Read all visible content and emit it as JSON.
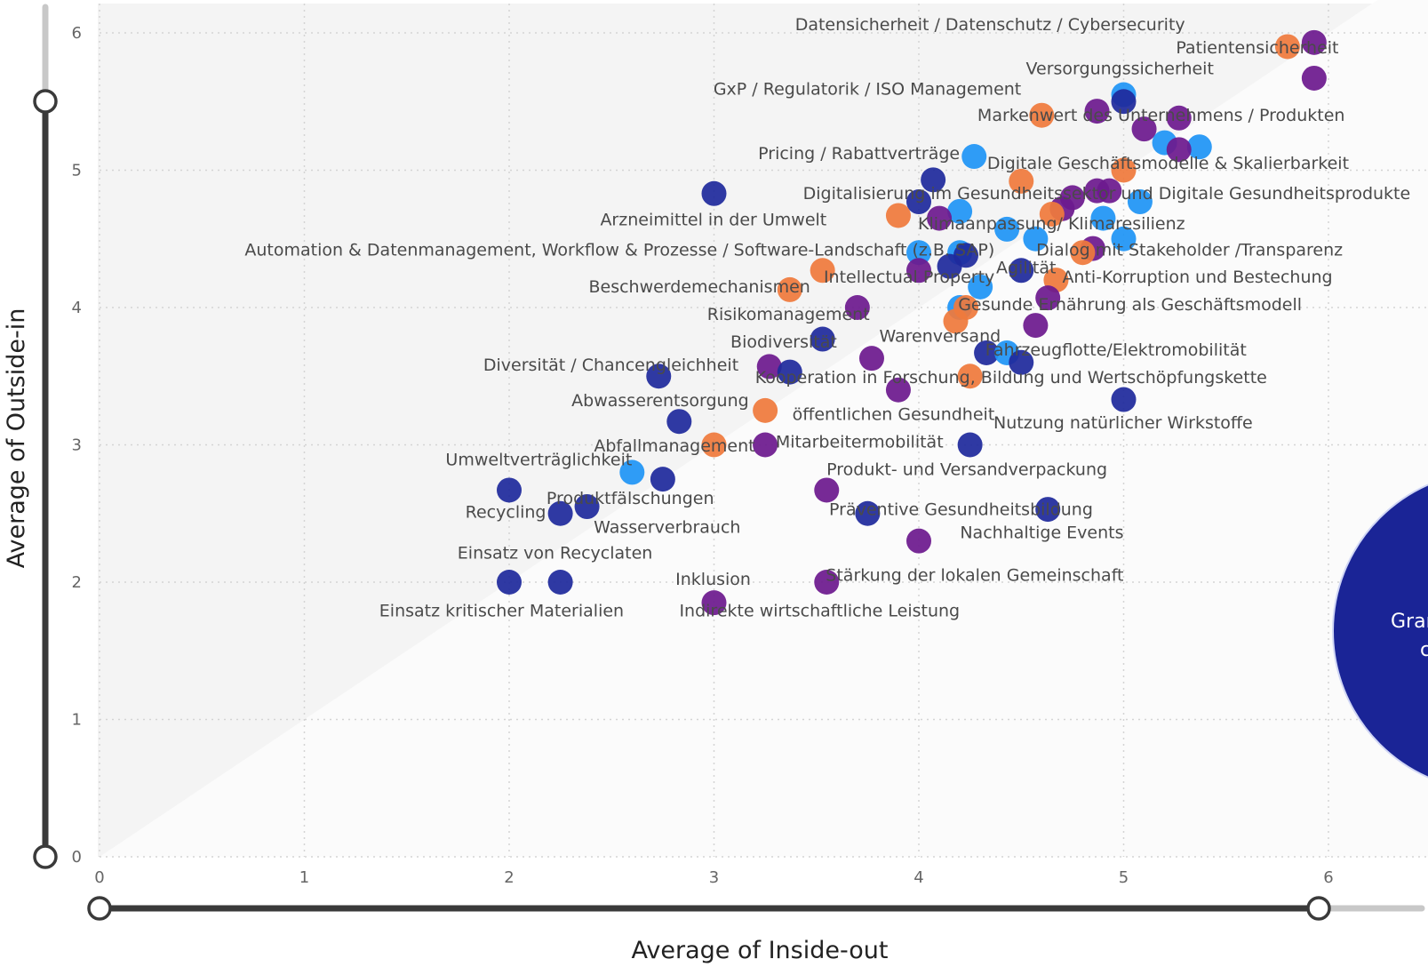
{
  "chart_data": {
    "type": "scatter",
    "xlabel": "Average of Inside-out",
    "ylabel": "Average of Outside-in",
    "xlim": [
      0,
      6.5
    ],
    "ylim": [
      0,
      6.2
    ],
    "x_ticks": [
      "0",
      "1",
      "2",
      "3",
      "4",
      "5",
      "6"
    ],
    "y_ticks": [
      "0",
      "1",
      "2",
      "3",
      "4",
      "5",
      "6"
    ],
    "grid": true,
    "colors": {
      "lightblue": "#1f95f5",
      "navy": "#1f2a9c",
      "purple": "#6d1a8e",
      "orange": "#ef7a3c",
      "big": "#1a2496"
    },
    "points": [
      {
        "x": 5.93,
        "y": 5.93,
        "c": "purple"
      },
      {
        "x": 5.8,
        "y": 5.9,
        "c": "orange"
      },
      {
        "x": 5.93,
        "y": 5.67,
        "c": "purple"
      },
      {
        "x": 5.0,
        "y": 5.55,
        "c": "lightblue"
      },
      {
        "x": 5.0,
        "y": 5.5,
        "c": "navy"
      },
      {
        "x": 4.87,
        "y": 5.43,
        "c": "purple"
      },
      {
        "x": 4.6,
        "y": 5.4,
        "c": "orange"
      },
      {
        "x": 5.27,
        "y": 5.38,
        "c": "purple"
      },
      {
        "x": 5.1,
        "y": 5.3,
        "c": "purple"
      },
      {
        "x": 5.2,
        "y": 5.2,
        "c": "lightblue"
      },
      {
        "x": 5.37,
        "y": 5.17,
        "c": "lightblue"
      },
      {
        "x": 5.27,
        "y": 5.15,
        "c": "purple"
      },
      {
        "x": 4.27,
        "y": 5.1,
        "c": "lightblue"
      },
      {
        "x": 5.0,
        "y": 5.0,
        "c": "orange"
      },
      {
        "x": 4.07,
        "y": 4.93,
        "c": "navy"
      },
      {
        "x": 4.5,
        "y": 4.92,
        "c": "orange"
      },
      {
        "x": 3.0,
        "y": 4.83,
        "c": "navy"
      },
      {
        "x": 4.93,
        "y": 4.85,
        "c": "purple"
      },
      {
        "x": 4.87,
        "y": 4.85,
        "c": "purple"
      },
      {
        "x": 4.75,
        "y": 4.8,
        "c": "purple"
      },
      {
        "x": 4.0,
        "y": 4.77,
        "c": "navy"
      },
      {
        "x": 5.08,
        "y": 4.77,
        "c": "lightblue"
      },
      {
        "x": 4.7,
        "y": 4.72,
        "c": "purple"
      },
      {
        "x": 4.2,
        "y": 4.7,
        "c": "lightblue"
      },
      {
        "x": 4.65,
        "y": 4.68,
        "c": "orange"
      },
      {
        "x": 3.9,
        "y": 4.67,
        "c": "orange"
      },
      {
        "x": 4.1,
        "y": 4.65,
        "c": "purple"
      },
      {
        "x": 4.9,
        "y": 4.65,
        "c": "lightblue"
      },
      {
        "x": 4.43,
        "y": 4.57,
        "c": "lightblue"
      },
      {
        "x": 4.57,
        "y": 4.5,
        "c": "lightblue"
      },
      {
        "x": 5.0,
        "y": 4.5,
        "c": "lightblue"
      },
      {
        "x": 4.85,
        "y": 4.43,
        "c": "purple"
      },
      {
        "x": 4.8,
        "y": 4.4,
        "c": "orange"
      },
      {
        "x": 4.0,
        "y": 4.4,
        "c": "lightblue"
      },
      {
        "x": 4.2,
        "y": 4.4,
        "c": "lightblue"
      },
      {
        "x": 4.23,
        "y": 4.38,
        "c": "navy"
      },
      {
        "x": 4.15,
        "y": 4.3,
        "c": "navy"
      },
      {
        "x": 4.0,
        "y": 4.27,
        "c": "purple"
      },
      {
        "x": 3.53,
        "y": 4.27,
        "c": "orange"
      },
      {
        "x": 4.5,
        "y": 4.27,
        "c": "navy"
      },
      {
        "x": 4.67,
        "y": 4.2,
        "c": "orange"
      },
      {
        "x": 4.3,
        "y": 4.15,
        "c": "lightblue"
      },
      {
        "x": 3.37,
        "y": 4.13,
        "c": "orange"
      },
      {
        "x": 4.63,
        "y": 4.07,
        "c": "purple"
      },
      {
        "x": 3.7,
        "y": 4.0,
        "c": "purple"
      },
      {
        "x": 4.2,
        "y": 4.0,
        "c": "lightblue"
      },
      {
        "x": 4.23,
        "y": 4.0,
        "c": "orange"
      },
      {
        "x": 4.18,
        "y": 3.9,
        "c": "orange"
      },
      {
        "x": 4.57,
        "y": 3.87,
        "c": "purple"
      },
      {
        "x": 3.53,
        "y": 3.77,
        "c": "navy"
      },
      {
        "x": 4.33,
        "y": 3.67,
        "c": "navy"
      },
      {
        "x": 4.43,
        "y": 3.67,
        "c": "lightblue"
      },
      {
        "x": 3.77,
        "y": 3.63,
        "c": "purple"
      },
      {
        "x": 4.5,
        "y": 3.6,
        "c": "navy"
      },
      {
        "x": 3.27,
        "y": 3.57,
        "c": "purple"
      },
      {
        "x": 3.37,
        "y": 3.53,
        "c": "navy"
      },
      {
        "x": 2.73,
        "y": 3.5,
        "c": "navy"
      },
      {
        "x": 4.25,
        "y": 3.5,
        "c": "orange"
      },
      {
        "x": 3.9,
        "y": 3.4,
        "c": "purple"
      },
      {
        "x": 5.0,
        "y": 3.33,
        "c": "navy"
      },
      {
        "x": 3.25,
        "y": 3.25,
        "c": "orange"
      },
      {
        "x": 2.83,
        "y": 3.17,
        "c": "navy"
      },
      {
        "x": 3.0,
        "y": 3.0,
        "c": "orange"
      },
      {
        "x": 3.25,
        "y": 3.0,
        "c": "purple"
      },
      {
        "x": 4.25,
        "y": 3.0,
        "c": "navy"
      },
      {
        "x": 2.6,
        "y": 2.8,
        "c": "lightblue"
      },
      {
        "x": 2.75,
        "y": 2.75,
        "c": "navy"
      },
      {
        "x": 2.0,
        "y": 2.67,
        "c": "navy"
      },
      {
        "x": 3.55,
        "y": 2.67,
        "c": "purple"
      },
      {
        "x": 2.38,
        "y": 2.55,
        "c": "navy"
      },
      {
        "x": 4.63,
        "y": 2.53,
        "c": "navy"
      },
      {
        "x": 2.25,
        "y": 2.5,
        "c": "navy"
      },
      {
        "x": 3.75,
        "y": 2.5,
        "c": "navy"
      },
      {
        "x": 4.0,
        "y": 2.3,
        "c": "purple"
      },
      {
        "x": 2.0,
        "y": 2.0,
        "c": "navy"
      },
      {
        "x": 2.25,
        "y": 2.0,
        "c": "navy"
      },
      {
        "x": 3.55,
        "y": 2.0,
        "c": "purple"
      },
      {
        "x": 3.0,
        "y": 1.85,
        "c": "purple"
      }
    ],
    "labels": [
      {
        "text": "Datensicherheit / Datenschutz / Cybersecurity",
        "x": 5.3,
        "y": 6.02,
        "anchor": "end"
      },
      {
        "text": "Patientensicherheit",
        "x": 6.05,
        "y": 5.85,
        "anchor": "end"
      },
      {
        "text": "Versorgungssicherheit",
        "x": 5.44,
        "y": 5.7,
        "anchor": "end"
      },
      {
        "text": "GxP / Regulatorik / ISO Management",
        "x": 4.5,
        "y": 5.55,
        "anchor": "end"
      },
      {
        "text": "Markenwert des Unternehmens / Produkten",
        "x": 6.08,
        "y": 5.36,
        "anchor": "end"
      },
      {
        "text": "Pricing / Rabattverträge",
        "x": 4.2,
        "y": 5.08,
        "anchor": "end"
      },
      {
        "text": "Digitale Geschäftsmodelle & Skalierbarkeit",
        "x": 6.1,
        "y": 5.01,
        "anchor": "end"
      },
      {
        "text": "Digitalisierung im Gesundheitssektor und Digitale Gesundheitsprodukte",
        "x": 6.4,
        "y": 4.79,
        "anchor": "end"
      },
      {
        "text": "Arzneimittel in der Umwelt",
        "x": 3.55,
        "y": 4.6,
        "anchor": "end"
      },
      {
        "text": "Klimaanpassung/ Klimaresilienz",
        "x": 5.3,
        "y": 4.57,
        "anchor": "end"
      },
      {
        "text": "Automation & Datenmanagement, Workflow & Prozesse / Software-Landschaft (z.B. SAP)",
        "x": 4.37,
        "y": 4.38,
        "anchor": "end"
      },
      {
        "text": "Dialog mit Stakeholder /Transparenz",
        "x": 6.07,
        "y": 4.38,
        "anchor": "end"
      },
      {
        "text": "Intellectual Property",
        "x": 4.37,
        "y": 4.18,
        "anchor": "end"
      },
      {
        "text": "Agilität",
        "x": 4.67,
        "y": 4.25,
        "anchor": "end"
      },
      {
        "text": "Anti-Korruption und Bestechung",
        "x": 6.02,
        "y": 4.18,
        "anchor": "end"
      },
      {
        "text": "Beschwerdemechanismen",
        "x": 3.47,
        "y": 4.11,
        "anchor": "end"
      },
      {
        "text": "Gesunde Ernährung als Geschäftsmodell",
        "x": 5.87,
        "y": 3.98,
        "anchor": "end"
      },
      {
        "text": "Risikomanagement",
        "x": 3.76,
        "y": 3.91,
        "anchor": "end"
      },
      {
        "text": "Warenversand",
        "x": 4.4,
        "y": 3.75,
        "anchor": "end"
      },
      {
        "text": "Biodiversität",
        "x": 3.6,
        "y": 3.71,
        "anchor": "end"
      },
      {
        "text": "Fahrzeugflotte/Elektromobilität",
        "x": 5.6,
        "y": 3.65,
        "anchor": "end"
      },
      {
        "text": "Diversität / Chancengleichheit",
        "x": 3.12,
        "y": 3.54,
        "anchor": "end"
      },
      {
        "text": "Kooperation in Forschung, Bildung und Wertschöpfungskette",
        "x": 5.7,
        "y": 3.45,
        "anchor": "end"
      },
      {
        "text": "Abwasserentsorgung",
        "x": 3.17,
        "y": 3.28,
        "anchor": "end"
      },
      {
        "text": "öffentlichen Gesundheit",
        "x": 4.37,
        "y": 3.18,
        "anchor": "end"
      },
      {
        "text": "Nutzung natürlicher Wirkstoffe",
        "x": 5.63,
        "y": 3.12,
        "anchor": "end"
      },
      {
        "text": "Abfallmanagement",
        "x": 3.2,
        "y": 2.95,
        "anchor": "end"
      },
      {
        "text": "Mitarbeitermobilität",
        "x": 4.12,
        "y": 2.98,
        "anchor": "end"
      },
      {
        "text": "Umweltverträglichkeit",
        "x": 2.6,
        "y": 2.85,
        "anchor": "end"
      },
      {
        "text": "Produkt- und Versandverpackung",
        "x": 4.92,
        "y": 2.78,
        "anchor": "end"
      },
      {
        "text": "Produktfälschungen",
        "x": 3.0,
        "y": 2.57,
        "anchor": "end"
      },
      {
        "text": "Recycling",
        "x": 2.18,
        "y": 2.47,
        "anchor": "end"
      },
      {
        "text": "Präventive Gesundheitsbildung",
        "x": 4.85,
        "y": 2.49,
        "anchor": "end"
      },
      {
        "text": "Wasserverbrauch",
        "x": 3.13,
        "y": 2.36,
        "anchor": "end"
      },
      {
        "text": "Nachhaltige Events",
        "x": 5.0,
        "y": 2.32,
        "anchor": "end"
      },
      {
        "text": "Einsatz von Recyclaten",
        "x": 2.7,
        "y": 2.17,
        "anchor": "end"
      },
      {
        "text": "Inklusion",
        "x": 3.18,
        "y": 1.98,
        "anchor": "end"
      },
      {
        "text": "Stärkung der lokalen Gemeinschaft",
        "x": 5.0,
        "y": 2.01,
        "anchor": "end"
      },
      {
        "text": "Einsatz kritischer Materialien",
        "x": 2.56,
        "y": 1.75,
        "anchor": "end"
      },
      {
        "text": "Indirekte wirtschaftliche Leistung",
        "x": 4.2,
        "y": 1.75,
        "anchor": "end"
      }
    ],
    "big_bubble": {
      "text_line1": "Gran",
      "text_line2": "c"
    }
  }
}
